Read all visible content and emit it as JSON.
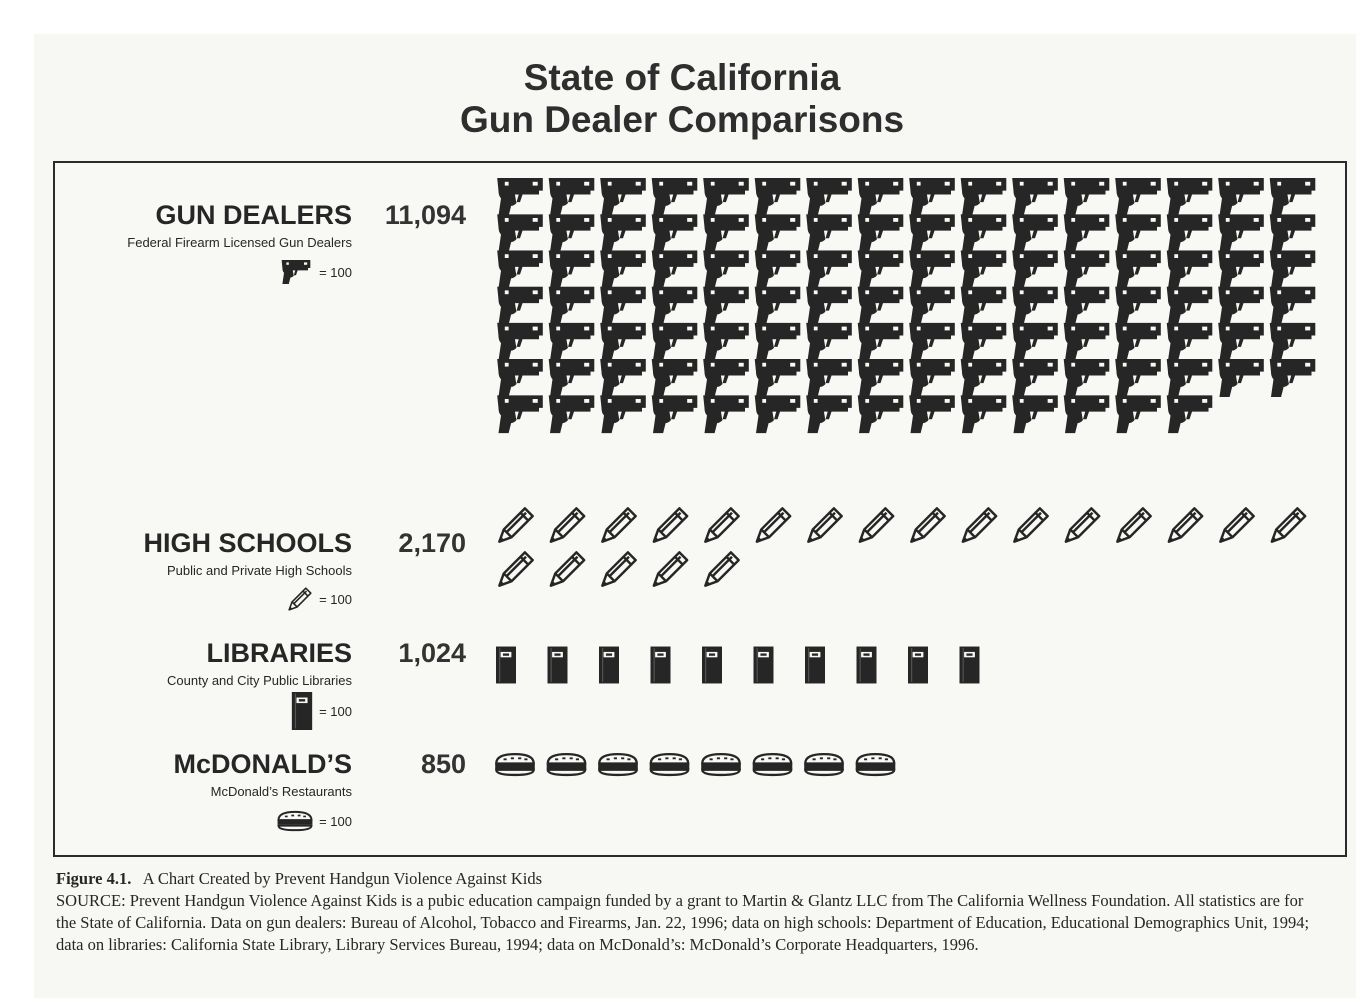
{
  "chart_data": {
    "type": "pictograph",
    "title": "State of California",
    "subtitle": "Gun Dealer Comparisons",
    "categories": [
      {
        "key": "gun",
        "name": "GUN DEALERS",
        "subtitle": "Federal Firearm Licensed Gun Dealers",
        "value": 11094,
        "value_label": "11,094",
        "icon": "handgun-icon",
        "legend": "= 100"
      },
      {
        "key": "school",
        "name": "HIGH SCHOOLS",
        "subtitle": "Public and Private High Schools",
        "value": 2170,
        "value_label": "2,170",
        "icon": "pencil-icon",
        "legend": "= 100"
      },
      {
        "key": "library",
        "name": "LIBRARIES",
        "subtitle": "County and City Public Libraries",
        "value": 1024,
        "value_label": "1,024",
        "icon": "book-icon",
        "legend": "= 100"
      },
      {
        "key": "mcd",
        "name": "McDONALD’S",
        "subtitle": "McDonald’s Restaurants",
        "value": 850,
        "value_label": "850",
        "icon": "burger-icon",
        "legend": "= 100"
      }
    ],
    "unit_per_icon": 100
  },
  "caption": {
    "label": "Figure 4.1.",
    "title": "A Chart Created by Prevent Handgun Violence Against Kids",
    "source": "SOURCE:  Prevent Handgun Violence Against Kids is a pubic education campaign funded by a grant to Martin & Glantz LLC from The California Wellness Foundation. All statistics are for the State of California. Data on gun dealers: Bureau of Alcohol, Tobacco and Firearms, Jan. 22, 1996; data on high schools: Department of Education, Educational Demographics Unit, 1994; data on libraries: California State Library, Library Services Bureau, 1994; data on McDonald’s: McDonald’s Corporate Headquarters, 1996."
  },
  "colors": {
    "ink": "#262626",
    "paper": "#f7f7f3"
  }
}
